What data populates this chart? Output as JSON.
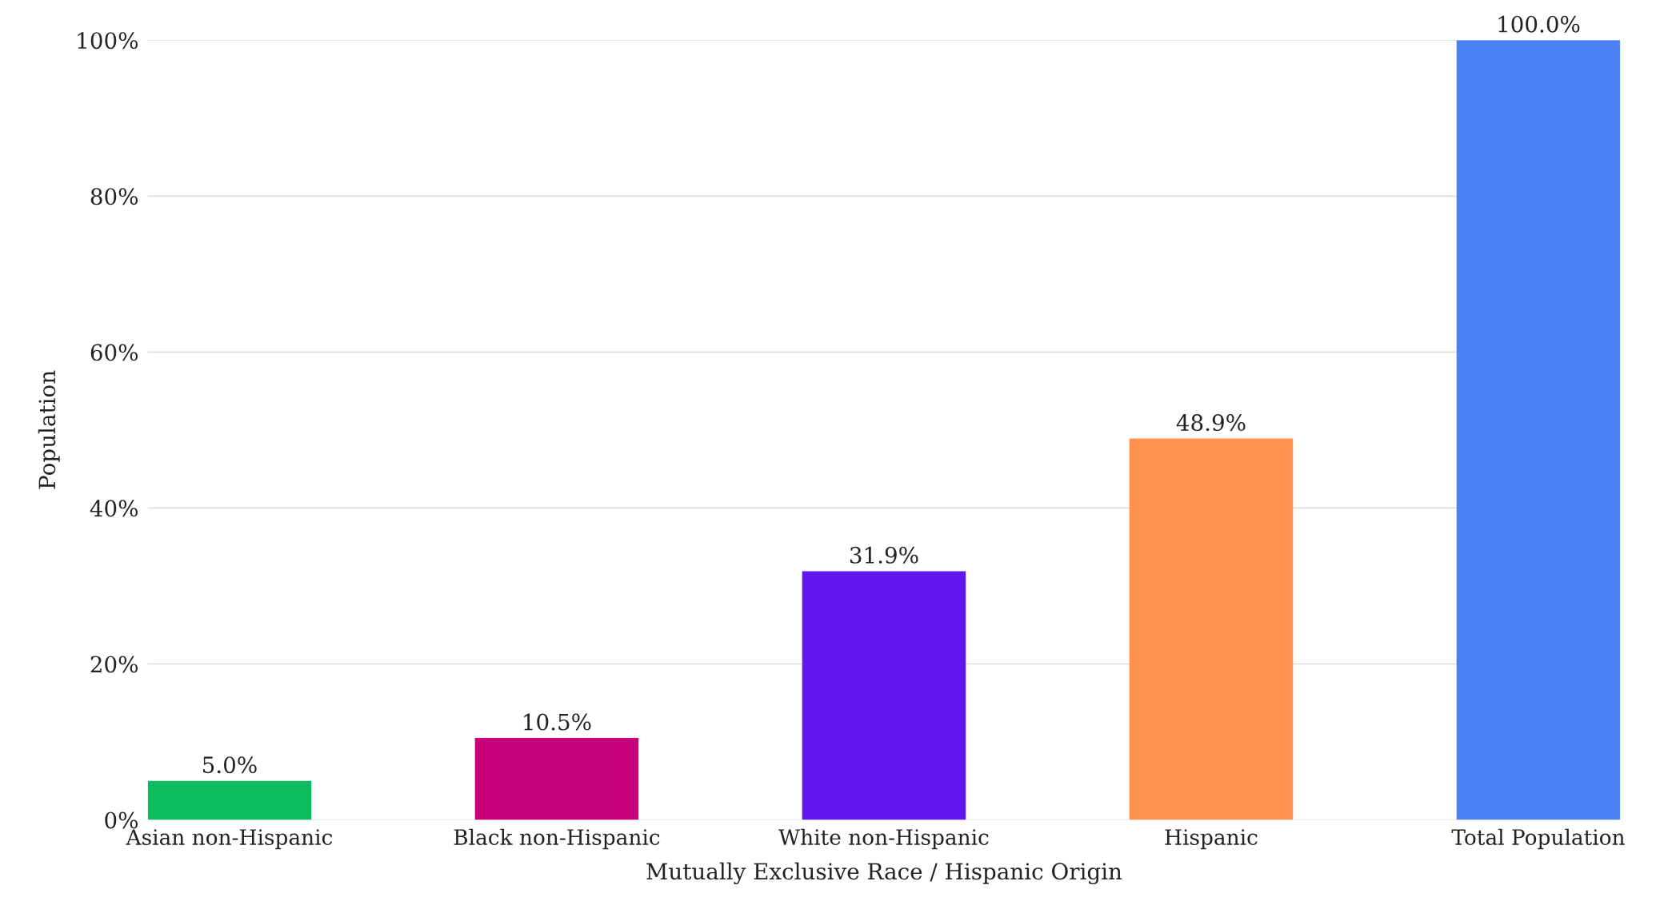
{
  "chart_data": {
    "type": "bar",
    "xlabel": "Mutually Exclusive Race / Hispanic Origin",
    "ylabel": "Population",
    "categories": [
      "Asian non-Hispanic",
      "Black non-Hispanic",
      "White non-Hispanic",
      "Hispanic",
      "Total Population"
    ],
    "values": [
      5.0,
      10.5,
      31.9,
      48.9,
      100.0
    ],
    "colors": [
      "#0bbd5e",
      "#c8007a",
      "#5f17ec",
      "#ff914d",
      "#4a80f5"
    ],
    "value_labels": [
      "5.0%",
      "10.5%",
      "31.9%",
      "48.9%",
      "100.0%"
    ],
    "ylim": [
      0,
      100
    ],
    "yticks": [
      {
        "value": 0,
        "label": "0%"
      },
      {
        "value": 20,
        "label": "20%"
      },
      {
        "value": 40,
        "label": "40%"
      },
      {
        "value": 60,
        "label": "60%"
      },
      {
        "value": 80,
        "label": "80%"
      },
      {
        "value": 100,
        "label": "100%"
      }
    ],
    "grid": "y"
  }
}
